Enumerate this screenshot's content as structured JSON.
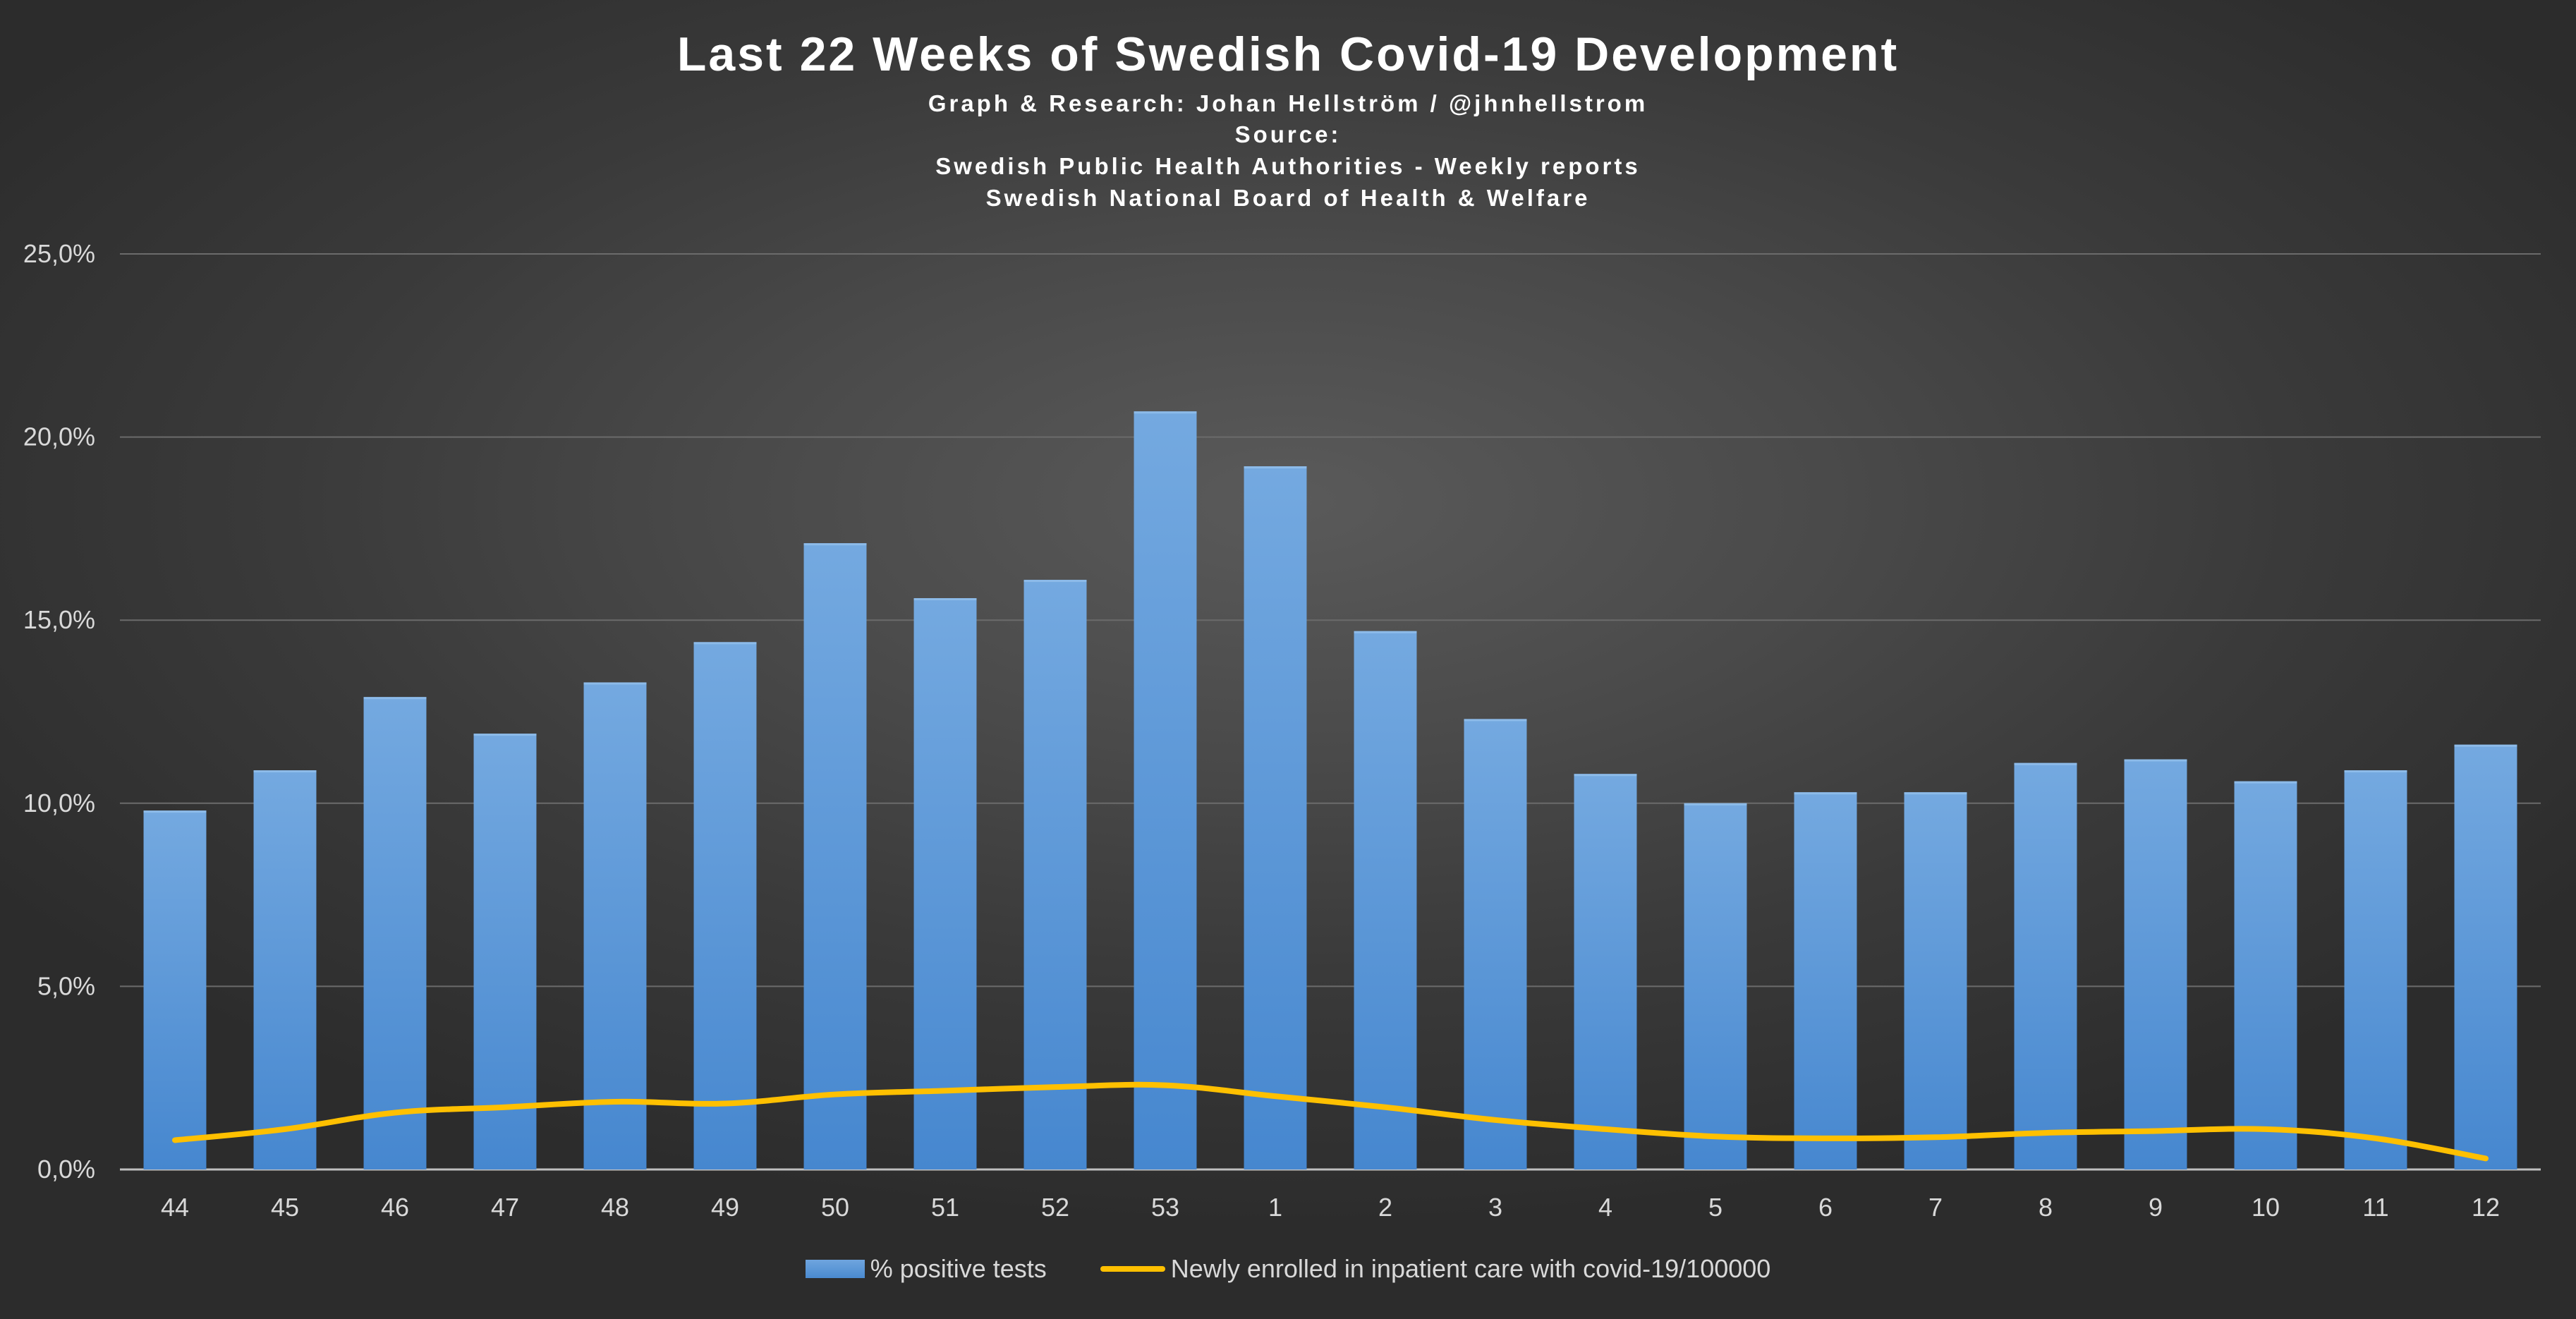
{
  "colors": {
    "bar": "#5b9bd5",
    "line": "#ffc000",
    "grid": "#6b6b6b",
    "axis": "#bfbfbf"
  },
  "chart_data": {
    "type": "bar",
    "title": "Last 22 Weeks of Swedish Covid-19 Development",
    "subtitle_lines": [
      "Graph & Research: Johan Hellström / @jhnhellstrom",
      "Source:",
      "Swedish Public Health Authorities - Weekly reports",
      "Swedish National Board of Health & Welfare"
    ],
    "categories": [
      "44",
      "45",
      "46",
      "47",
      "48",
      "49",
      "50",
      "51",
      "52",
      "53",
      "1",
      "2",
      "3",
      "4",
      "5",
      "6",
      "7",
      "8",
      "9",
      "10",
      "11",
      "12"
    ],
    "ylim": [
      0,
      25
    ],
    "yticks": [
      0,
      5,
      10,
      15,
      20,
      25
    ],
    "ytick_labels": [
      "0,0%",
      "5,0%",
      "10,0%",
      "15,0%",
      "20,0%",
      "25,0%"
    ],
    "xlabel": "",
    "ylabel": "",
    "grid": true,
    "legend_position": "bottom",
    "series": [
      {
        "name": "% positive tests",
        "type": "bar",
        "values": [
          9.8,
          10.9,
          12.9,
          11.9,
          13.3,
          14.4,
          17.1,
          15.6,
          16.1,
          20.7,
          19.2,
          14.7,
          12.3,
          10.8,
          10.0,
          10.3,
          10.3,
          11.1,
          11.2,
          10.6,
          10.9,
          11.6
        ]
      },
      {
        "name": "Newly enrolled in inpatient care with covid-19/100000",
        "type": "line",
        "values": [
          0.8,
          1.1,
          1.55,
          1.7,
          1.85,
          1.8,
          2.05,
          2.15,
          2.25,
          2.3,
          2.0,
          1.7,
          1.35,
          1.1,
          0.9,
          0.85,
          0.88,
          1.0,
          1.05,
          1.1,
          0.85,
          0.3
        ]
      }
    ]
  }
}
